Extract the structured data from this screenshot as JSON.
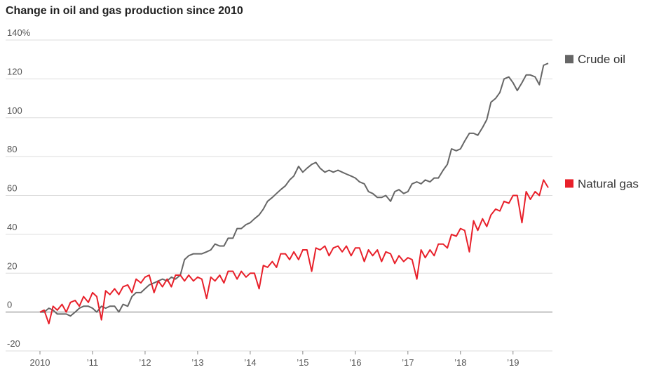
{
  "chart_data": {
    "type": "line",
    "title": "Change in oil and gas production since 2010",
    "x": [
      2010,
      2010.08,
      2010.17,
      2010.25,
      2010.33,
      2010.42,
      2010.5,
      2010.58,
      2010.67,
      2010.75,
      2010.83,
      2010.92,
      2011,
      2011.08,
      2011.17,
      2011.25,
      2011.33,
      2011.42,
      2011.5,
      2011.58,
      2011.67,
      2011.75,
      2011.83,
      2011.92,
      2012,
      2012.08,
      2012.17,
      2012.25,
      2012.33,
      2012.42,
      2012.5,
      2012.58,
      2012.67,
      2012.75,
      2012.83,
      2012.92,
      2013,
      2013.08,
      2013.17,
      2013.25,
      2013.33,
      2013.42,
      2013.5,
      2013.58,
      2013.67,
      2013.75,
      2013.83,
      2013.92,
      2014,
      2014.08,
      2014.17,
      2014.25,
      2014.33,
      2014.42,
      2014.5,
      2014.58,
      2014.67,
      2014.75,
      2014.83,
      2014.92,
      2015,
      2015.08,
      2015.17,
      2015.25,
      2015.33,
      2015.42,
      2015.5,
      2015.58,
      2015.67,
      2015.75,
      2015.83,
      2015.92,
      2016,
      2016.08,
      2016.17,
      2016.25,
      2016.33,
      2016.42,
      2016.5,
      2016.58,
      2016.67,
      2016.75,
      2016.83,
      2016.92,
      2017,
      2017.08,
      2017.17,
      2017.25,
      2017.33,
      2017.42,
      2017.5,
      2017.58,
      2017.67,
      2017.75,
      2017.83,
      2017.92,
      2018,
      2018.08,
      2018.17,
      2018.25,
      2018.33,
      2018.42,
      2018.5,
      2018.58,
      2018.67,
      2018.75,
      2018.83,
      2018.92,
      2019,
      2019.08,
      2019.17,
      2019.25,
      2019.33,
      2019.42,
      2019.5,
      2019.58,
      2019.67
    ],
    "series": [
      {
        "name": "Crude oil",
        "color": "#666666",
        "values": [
          0,
          0,
          2,
          1,
          -1,
          -1,
          -1,
          -2,
          0,
          2,
          3,
          3,
          2,
          0,
          3,
          2,
          3,
          3,
          0,
          4,
          3,
          8,
          10,
          10,
          12,
          14,
          15,
          16,
          17,
          16,
          18,
          17,
          19,
          27,
          29,
          30,
          30,
          30,
          31,
          32,
          35,
          34,
          34,
          38,
          38,
          43,
          43,
          45,
          46,
          48,
          50,
          53,
          57,
          59,
          61,
          63,
          65,
          68,
          70,
          75,
          72,
          74,
          76,
          77,
          74,
          72,
          73,
          72,
          73,
          72,
          71,
          70,
          69,
          67,
          66,
          62,
          61,
          59,
          59,
          60,
          57,
          62,
          63,
          61,
          62,
          66,
          67,
          66,
          68,
          67,
          69,
          69,
          73,
          76,
          84,
          83,
          84,
          88,
          92,
          92,
          91,
          95,
          99,
          108,
          110,
          113,
          120,
          121,
          118,
          114,
          118,
          122,
          122,
          121,
          117,
          127,
          128
        ]
      },
      {
        "name": "Natural gas",
        "color": "#e8202a",
        "values": [
          0,
          1,
          -6,
          3,
          1,
          4,
          0,
          5,
          6,
          3,
          8,
          5,
          10,
          8,
          -4,
          11,
          9,
          12,
          9,
          13,
          14,
          10,
          17,
          15,
          18,
          19,
          10,
          16,
          13,
          17,
          13,
          19,
          19,
          16,
          19,
          16,
          18,
          17,
          7,
          18,
          16,
          19,
          15,
          21,
          21,
          17,
          21,
          18,
          20,
          20,
          12,
          24,
          23,
          26,
          23,
          30,
          30,
          27,
          31,
          27,
          32,
          32,
          21,
          33,
          32,
          34,
          29,
          33,
          34,
          31,
          34,
          29,
          33,
          33,
          26,
          32,
          29,
          32,
          26,
          31,
          30,
          25,
          29,
          26,
          28,
          27,
          17,
          32,
          28,
          32,
          29,
          35,
          35,
          33,
          40,
          39,
          43,
          42,
          31,
          47,
          42,
          48,
          44,
          50,
          53,
          52,
          57,
          56,
          60,
          60,
          46,
          62,
          58,
          62,
          60,
          68,
          64
        ]
      }
    ],
    "xlim": [
      2010,
      2019.75
    ],
    "xticks": [
      2010,
      {
        "value": 2011,
        "label": "’11"
      },
      {
        "value": 2012,
        "label": "’12"
      },
      {
        "value": 2013,
        "label": "’13"
      },
      {
        "value": 2014,
        "label": "’14"
      },
      {
        "value": 2015,
        "label": "’15"
      },
      {
        "value": 2016,
        "label": "’16"
      },
      {
        "value": 2017,
        "label": "’17"
      },
      {
        "value": 2018,
        "label": "’18"
      },
      {
        "value": 2019,
        "label": "’19"
      }
    ],
    "ylim": [
      -20,
      140
    ],
    "yticks": [
      -20,
      0,
      20,
      40,
      60,
      80,
      100,
      120,
      {
        "value": 140,
        "label": "140%"
      }
    ],
    "grid": true
  }
}
